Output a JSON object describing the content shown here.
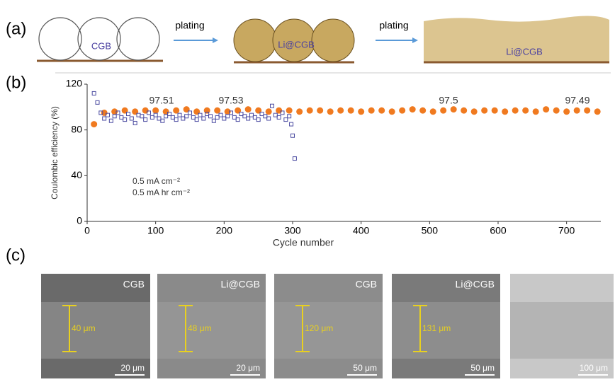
{
  "panel_a": {
    "label": "(a)",
    "arrows": [
      "plating",
      "plating"
    ],
    "images": [
      "CGB",
      "Li@CGB",
      "Li@CGB"
    ]
  },
  "panel_b_label": "(b)",
  "chart_data": {
    "type": "scatter",
    "xlabel": "Cycle number",
    "ylabel": "Coulombic efficiency (%)",
    "xlim": [
      0,
      750
    ],
    "ylim": [
      0,
      120
    ],
    "xticks": [
      0,
      100,
      200,
      300,
      400,
      500,
      600,
      700
    ],
    "yticks": [
      0,
      40,
      80,
      120
    ],
    "annotations": [
      "97.51",
      "97.53",
      "97.5",
      "97.49",
      "0.5 mA cm⁻²",
      "0.5 mA hr cm⁻²"
    ],
    "series": [
      {
        "color": "#f07a20",
        "marker": "circle",
        "x": [
          10,
          25,
          40,
          55,
          70,
          85,
          100,
          115,
          130,
          145,
          160,
          175,
          190,
          205,
          220,
          235,
          250,
          265,
          280,
          295,
          310,
          325,
          340,
          355,
          370,
          385,
          400,
          415,
          430,
          445,
          460,
          475,
          490,
          505,
          520,
          535,
          550,
          565,
          580,
          595,
          610,
          625,
          640,
          655,
          670,
          685,
          700,
          715,
          730,
          745
        ],
        "values": [
          85,
          95,
          96,
          97,
          96,
          97,
          97,
          96,
          97,
          98,
          96,
          97,
          97,
          96,
          97,
          98,
          97,
          96,
          97,
          97,
          96,
          97,
          97,
          96,
          97,
          97,
          96,
          97,
          97,
          96,
          97,
          98,
          97,
          96,
          97,
          98,
          97,
          96,
          97,
          97,
          96,
          97,
          97,
          96,
          98,
          97,
          96,
          97,
          97,
          96
        ]
      },
      {
        "color": "#4a4aa0",
        "marker": "square",
        "x": [
          10,
          15,
          20,
          25,
          30,
          35,
          40,
          45,
          50,
          55,
          60,
          65,
          70,
          75,
          80,
          85,
          90,
          95,
          100,
          105,
          110,
          115,
          120,
          125,
          130,
          135,
          140,
          145,
          150,
          155,
          160,
          165,
          170,
          175,
          180,
          185,
          190,
          195,
          200,
          205,
          210,
          215,
          220,
          225,
          230,
          235,
          240,
          245,
          250,
          255,
          260,
          265,
          270,
          275,
          280,
          285,
          290,
          295,
          298,
          300,
          303
        ],
        "values": [
          112,
          104,
          95,
          90,
          93,
          88,
          92,
          95,
          91,
          89,
          94,
          90,
          86,
          93,
          92,
          89,
          95,
          91,
          93,
          90,
          88,
          92,
          94,
          91,
          89,
          93,
          90,
          92,
          95,
          91,
          89,
          93,
          90,
          94,
          92,
          88,
          91,
          93,
          90,
          92,
          95,
          91,
          89,
          94,
          92,
          90,
          93,
          91,
          89,
          94,
          92,
          90,
          101,
          93,
          91,
          95,
          89,
          92,
          85,
          75,
          55
        ]
      }
    ]
  },
  "panel_c": {
    "label": "(c)",
    "images": [
      {
        "title": "CGB",
        "thickness": "40 μm",
        "scale": "20 μm"
      },
      {
        "title": "Li@CGB",
        "thickness": "48 μm",
        "scale": "20 μm"
      },
      {
        "title": "CGB",
        "thickness": "120 μm",
        "scale": "50 μm"
      },
      {
        "title": "Li@CGB",
        "thickness": "131 μm",
        "scale": "50 μm"
      },
      {
        "scale": "100 μm"
      }
    ]
  }
}
